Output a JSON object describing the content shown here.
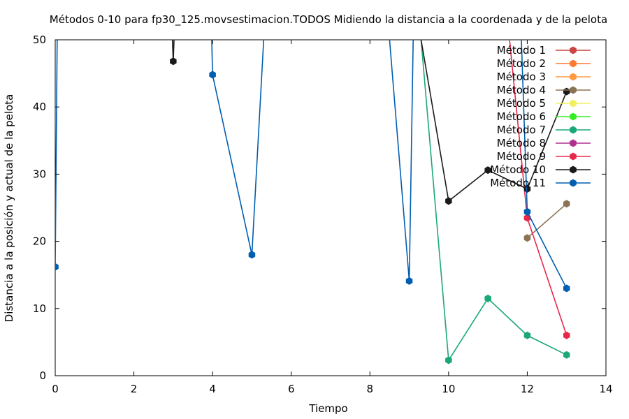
{
  "chart_data": {
    "type": "line",
    "title": "Métodos 0-10 para fp30_125.movsestimacion.TODOS Midiendo la distancia a la coordenada y de la pelota",
    "xlabel": "Tiempo",
    "ylabel": "Distancia a la posición y actual de la pelota",
    "xlim": [
      0,
      14
    ],
    "ylim": [
      0,
      50
    ],
    "xticks": [
      "0",
      "2",
      "4",
      "6",
      "8",
      "10",
      "12",
      "14"
    ],
    "yticks": [
      "0",
      "10",
      "20",
      "30",
      "40",
      "50"
    ],
    "grid": false,
    "legend_position": "top-right",
    "series": [
      {
        "name": "Método 1",
        "color": "#cc4444",
        "points": []
      },
      {
        "name": "Método 2",
        "color": "#ff7a30",
        "points": []
      },
      {
        "name": "Método 3",
        "color": "#ff9a40",
        "points": []
      },
      {
        "name": "Método 4",
        "color": "#8b7355",
        "points": [
          [
            12,
            20.5
          ],
          [
            13,
            25.6
          ]
        ]
      },
      {
        "name": "Método 5",
        "color": "#f0f060",
        "points": []
      },
      {
        "name": "Método 6",
        "color": "#33ee22",
        "points": []
      },
      {
        "name": "Método 7",
        "color": "#1aa878",
        "points": [
          [
            9.3,
            50
          ],
          [
            10,
            2.3
          ],
          [
            11,
            11.5
          ],
          [
            12,
            6.0
          ],
          [
            13,
            3.1
          ]
        ]
      },
      {
        "name": "Método 8",
        "color": "#b03090",
        "points": []
      },
      {
        "name": "Método 9",
        "color": "#e8284a",
        "points": [
          [
            11.55,
            50
          ],
          [
            12,
            23.5
          ],
          [
            13,
            6.0
          ]
        ]
      },
      {
        "name": "Método 10",
        "color": "#1a1a1a",
        "points": [
          [
            2.98,
            50
          ],
          [
            3,
            46.8
          ],
          [
            3.02,
            50
          ],
          null,
          [
            9.3,
            50
          ],
          [
            10,
            26.0
          ],
          [
            11,
            30.6
          ],
          [
            12,
            27.8
          ],
          [
            13,
            42.3
          ]
        ]
      },
      {
        "name": "Método 11",
        "color": "#005eb0",
        "points": [
          [
            0,
            16.2
          ],
          [
            0.05,
            50
          ],
          null,
          [
            3.98,
            50
          ],
          [
            4,
            44.8
          ],
          [
            5,
            18.0
          ],
          [
            5.3,
            50
          ],
          null,
          [
            8.5,
            50
          ],
          [
            9,
            14.1
          ],
          [
            9.1,
            50
          ],
          null,
          [
            11.85,
            50
          ],
          [
            12,
            24.4
          ],
          [
            13,
            13.0
          ]
        ]
      }
    ]
  }
}
